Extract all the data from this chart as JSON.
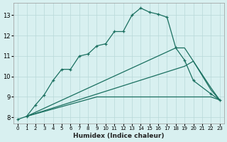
{
  "xlabel": "Humidex (Indice chaleur)",
  "bg_color": "#d8f0f0",
  "grid_color": "#b8d8d8",
  "line_color": "#1a7060",
  "xlim": [
    -0.5,
    23.5
  ],
  "ylim": [
    7.7,
    13.6
  ],
  "xticks": [
    0,
    1,
    2,
    3,
    4,
    5,
    6,
    7,
    8,
    9,
    10,
    11,
    12,
    13,
    14,
    15,
    16,
    17,
    18,
    19,
    20,
    21,
    22,
    23
  ],
  "yticks": [
    8,
    9,
    10,
    11,
    12,
    13
  ],
  "line1_x": [
    0,
    1,
    2,
    3,
    4,
    5,
    6,
    7,
    8,
    9,
    10,
    11,
    12,
    13,
    14,
    15,
    16,
    17,
    18,
    19,
    20,
    22,
    23
  ],
  "line1_y": [
    7.9,
    8.05,
    8.6,
    9.1,
    9.8,
    10.35,
    10.35,
    11.0,
    11.1,
    11.5,
    11.6,
    12.2,
    12.2,
    13.0,
    13.35,
    13.15,
    13.05,
    12.9,
    11.4,
    10.8,
    9.8,
    9.15,
    8.85
  ],
  "line2_x": [
    1,
    9,
    10,
    11,
    12,
    13,
    14,
    15,
    16,
    17,
    18,
    19,
    20,
    22,
    23
  ],
  "line2_y": [
    8.05,
    9.0,
    9.0,
    9.0,
    9.0,
    9.0,
    9.0,
    9.0,
    9.0,
    9.0,
    9.0,
    9.0,
    9.0,
    9.0,
    8.85
  ],
  "line3_x": [
    1,
    19,
    20,
    22,
    23
  ],
  "line3_y": [
    8.05,
    10.5,
    10.75,
    9.35,
    8.85
  ],
  "line4_x": [
    1,
    18,
    19,
    20,
    22,
    23
  ],
  "line4_y": [
    8.05,
    11.4,
    11.4,
    10.75,
    9.45,
    8.85
  ]
}
